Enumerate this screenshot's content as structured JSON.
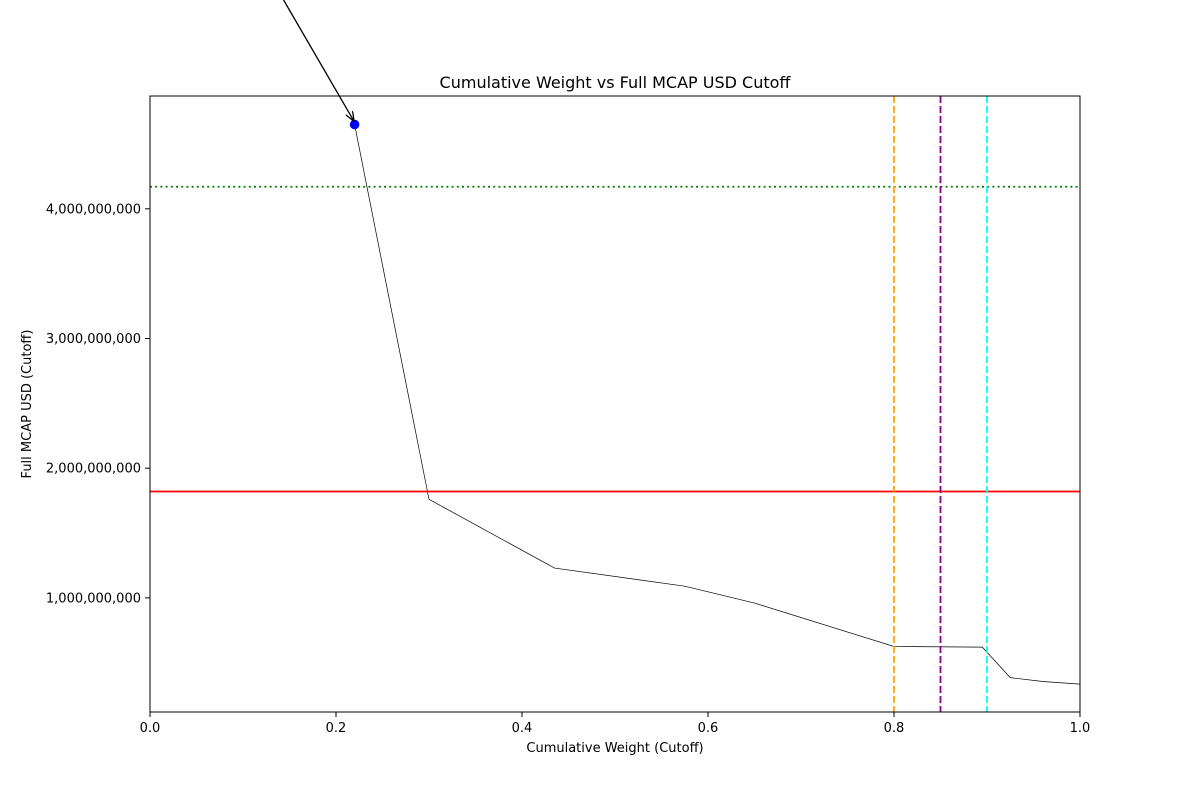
{
  "chart_data": {
    "type": "line",
    "title": "Cumulative Weight vs Full MCAP USD Cutoff",
    "xlabel": "Cumulative Weight (Cutoff)",
    "ylabel": "Full MCAP USD (Cutoff)",
    "xlim": [
      0.0,
      1.0
    ],
    "ylim": [
      120000000,
      4870000000
    ],
    "x_ticks": [
      0.0,
      0.2,
      0.4,
      0.6,
      0.8,
      1.0
    ],
    "x_tick_labels": [
      "0.0",
      "0.2",
      "0.4",
      "0.6",
      "0.8",
      "1.0"
    ],
    "y_ticks": [
      1000000000,
      2000000000,
      3000000000,
      4000000000
    ],
    "y_tick_labels": [
      "1,000,000,000",
      "2,000,000,000",
      "3,000,000,000",
      "4,000,000,000"
    ],
    "grid": false,
    "series": [
      {
        "color": "#000000",
        "x": [
          0.22,
          0.3,
          0.435,
          0.575,
          0.65,
          0.8,
          0.895,
          0.925,
          0.96,
          1.0
        ],
        "y": [
          4650000000,
          1760000000,
          1230000000,
          1090000000,
          960000000,
          625000000,
          620000000,
          385000000,
          355000000,
          335000000
        ]
      }
    ],
    "highlight_point": {
      "x": 0.22,
      "y": 4650000000,
      "color": "#0000ff"
    },
    "reference_lines": [
      {
        "orientation": "horizontal",
        "value": 4170000000,
        "color": "#008000",
        "style": "dotted"
      },
      {
        "orientation": "horizontal",
        "value": 1820000000,
        "color": "#ff0000",
        "style": "solid"
      },
      {
        "orientation": "vertical",
        "value": 0.8,
        "color": "#ffa500",
        "style": "dashed"
      },
      {
        "orientation": "vertical",
        "value": 0.85,
        "color": "#8b008b",
        "style": "dashed"
      },
      {
        "orientation": "vertical",
        "value": 0.9,
        "color": "#00ffff",
        "style": "dashed"
      }
    ],
    "annotation_arrow": {
      "to_x": 0.22,
      "to_y": 4650000000,
      "color": "#000000"
    }
  }
}
